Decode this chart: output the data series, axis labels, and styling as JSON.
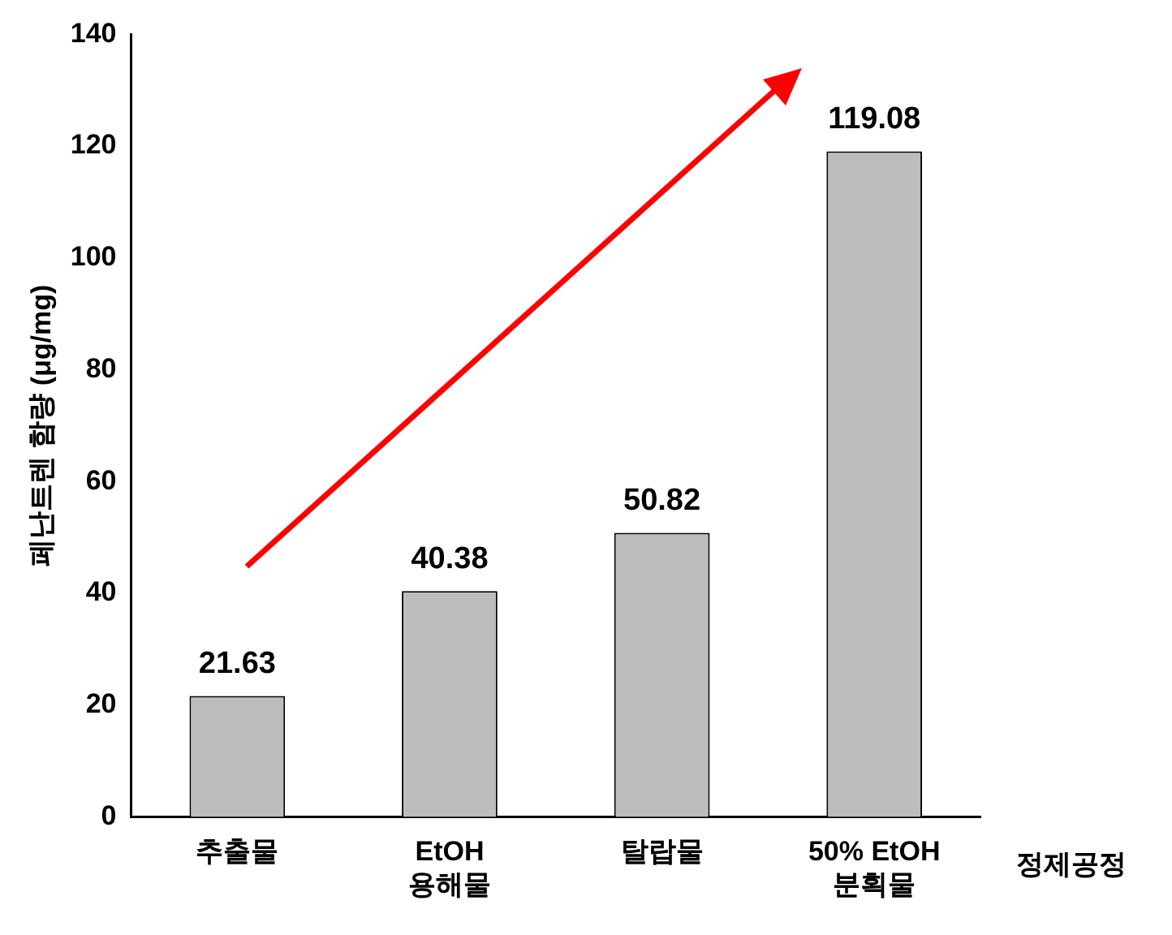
{
  "chart_data": {
    "type": "bar",
    "categories": [
      "추출물",
      "EtOH\n용해물",
      "탈랍물",
      "50% EtOH\n분획물"
    ],
    "values": [
      21.63,
      40.38,
      50.82,
      119.08
    ],
    "color": "#bdbdbd",
    "xlabel": "정제공정",
    "ylabel": "페난트렌 함량 (μg/mg)",
    "ylim": [
      0,
      140
    ],
    "yticks": [
      0,
      20,
      40,
      60,
      80,
      100,
      120,
      140
    ],
    "grid": false,
    "legend": false,
    "data_labels": true
  }
}
